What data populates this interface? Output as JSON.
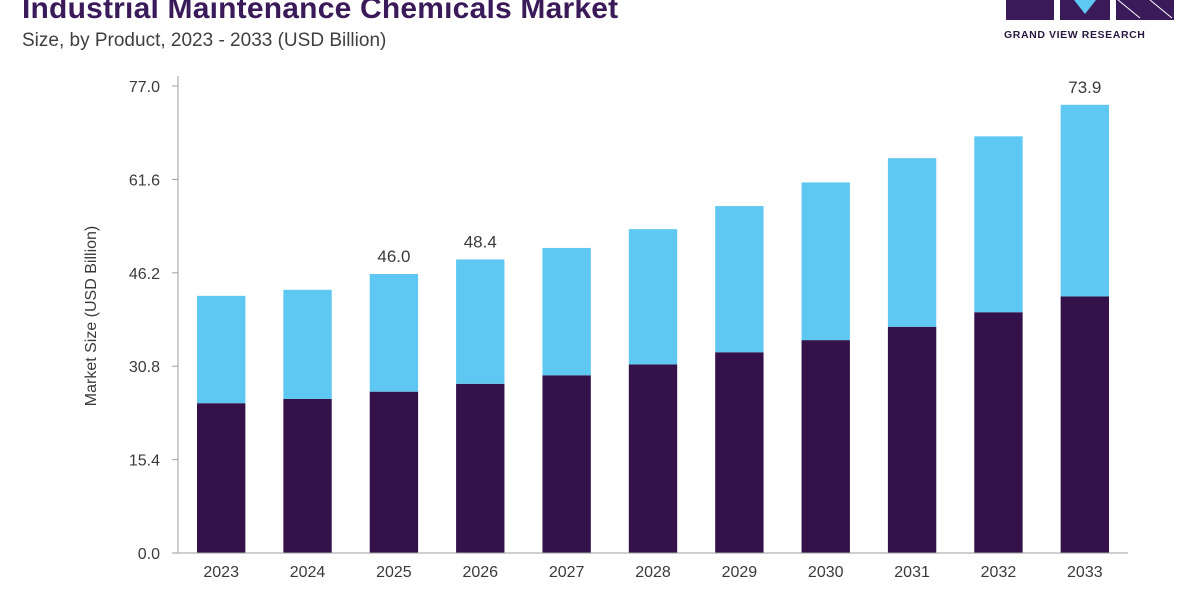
{
  "header": {
    "title": "Industrial Maintenance Chemicals Market",
    "subtitle": "Size, by Product, 2023 - 2033 (USD Billion)"
  },
  "brand": {
    "logo_text": "GRAND VIEW RESEARCH"
  },
  "colors": {
    "series_dark": "#341149",
    "series_light": "#5ec8f2",
    "axis": "#9e9e9e",
    "text": "#3a3a3a"
  },
  "chart_data": {
    "type": "bar",
    "stacked": true,
    "title": "Industrial Maintenance Chemicals Market",
    "subtitle": "Size, by Product, 2023 - 2033 (USD Billion)",
    "xlabel": "",
    "ylabel": "Market Size (USD Billion)",
    "ylim": [
      0,
      77.0
    ],
    "yticks": [
      "0.0",
      "15.4",
      "30.8",
      "46.2",
      "61.6",
      "77.0"
    ],
    "grid": false,
    "categories": [
      "2023",
      "2024",
      "2025",
      "2026",
      "2027",
      "2028",
      "2029",
      "2030",
      "2031",
      "2032",
      "2033"
    ],
    "series": [
      {
        "values": [
          24.7,
          25.4,
          26.6,
          27.9,
          29.3,
          31.1,
          33.1,
          35.1,
          37.3,
          39.7,
          42.3
        ]
      },
      {
        "values": [
          17.7,
          18.0,
          19.4,
          20.5,
          21.0,
          22.3,
          24.1,
          26.0,
          27.8,
          29.0,
          31.6
        ]
      }
    ],
    "data_labels": [
      {
        "category": "2025",
        "text": "46.0"
      },
      {
        "category": "2026",
        "text": "48.4"
      },
      {
        "category": "2033",
        "text": "73.9"
      }
    ]
  }
}
